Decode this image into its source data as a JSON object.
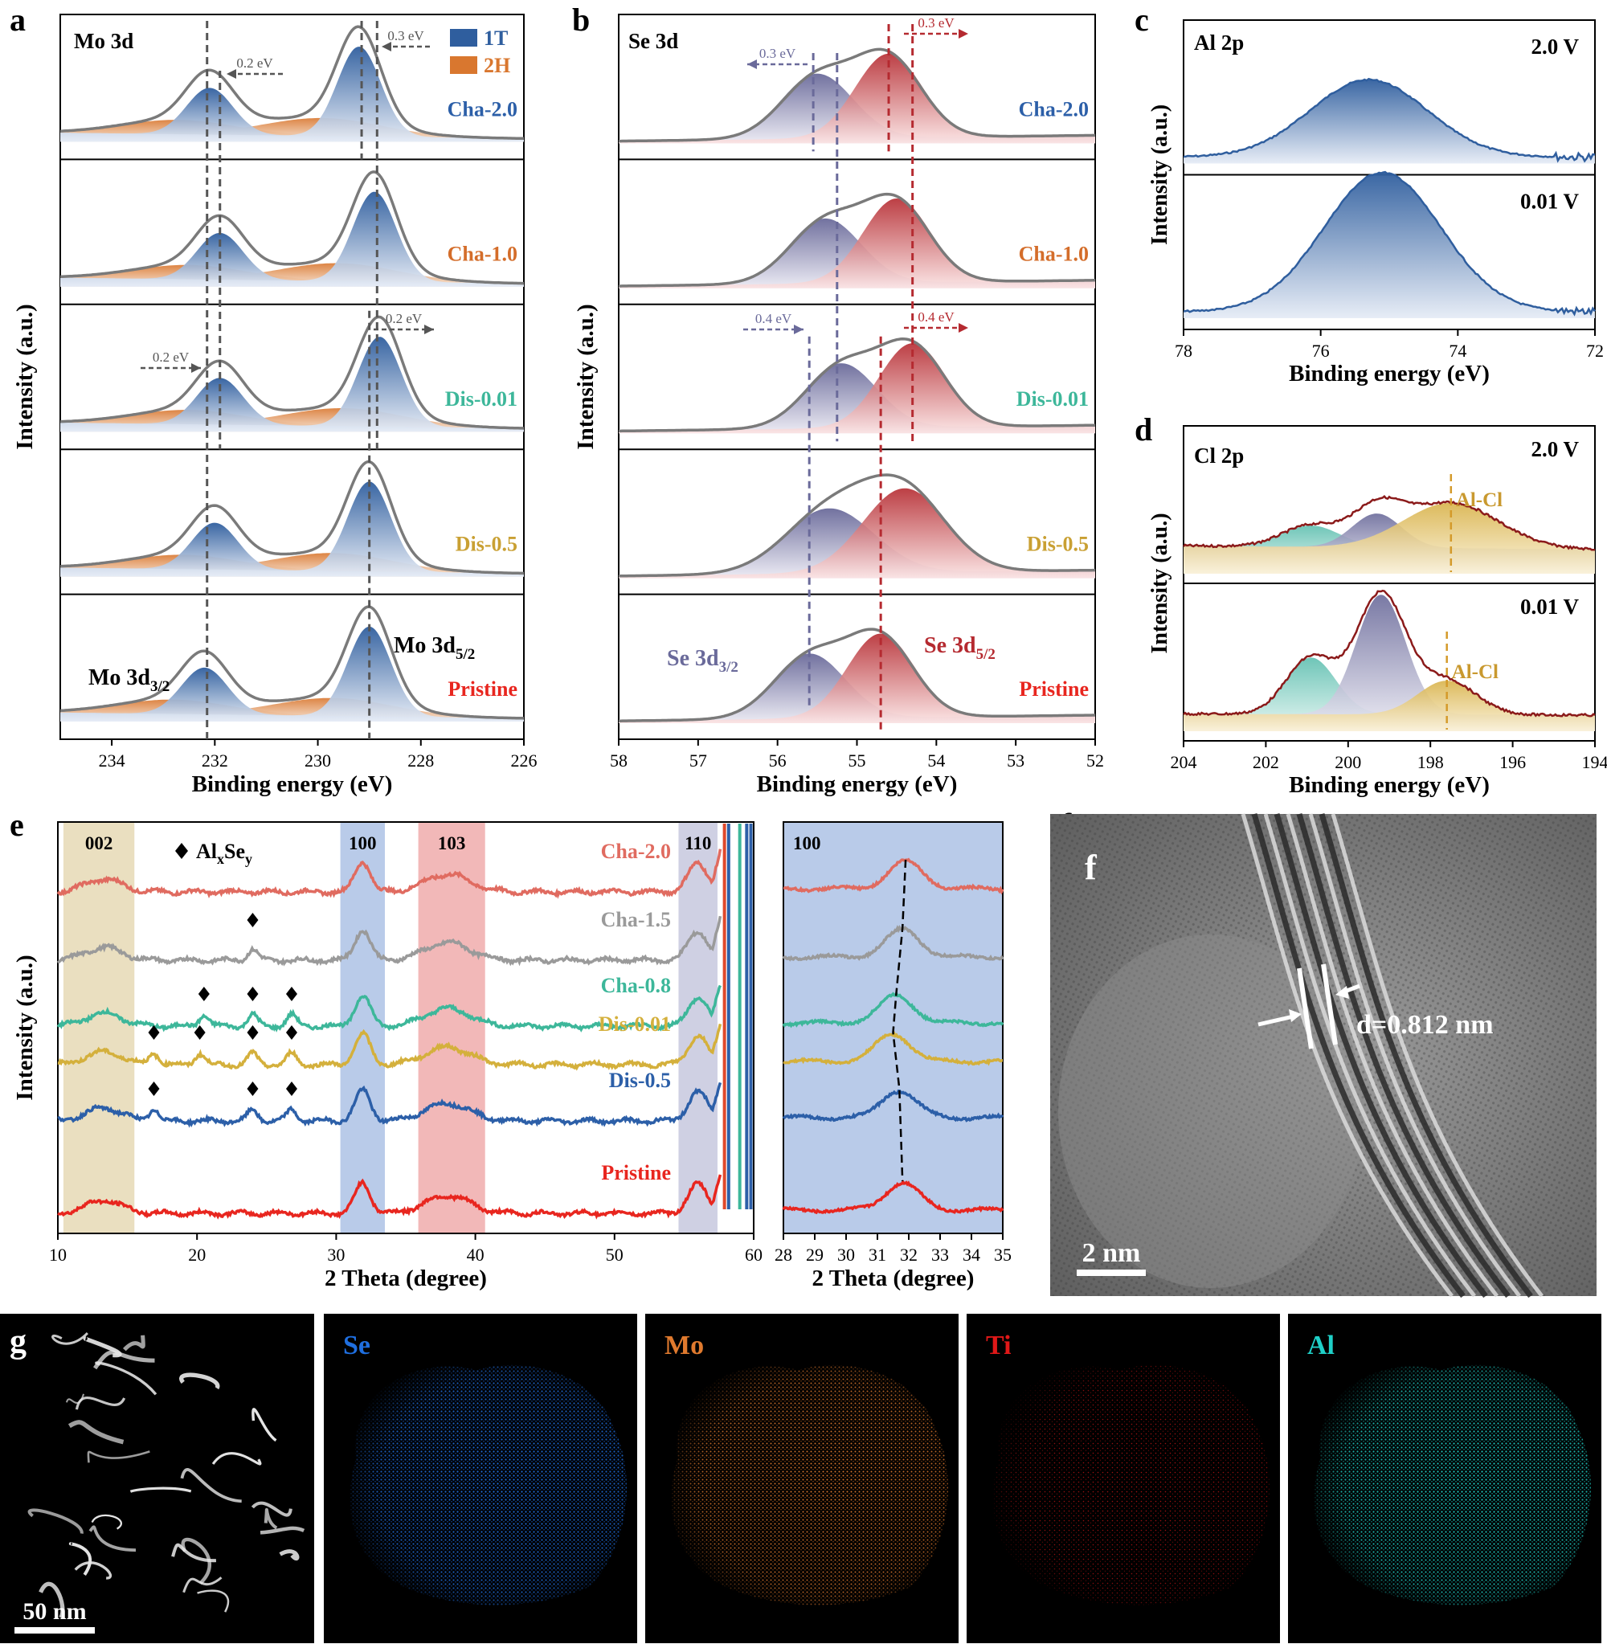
{
  "colors": {
    "c1T": "#2f5e9e",
    "c2H": "#d9772f",
    "se32": "#6a6a9a",
    "se52": "#b52a30",
    "al": "#2f5e9e",
    "alcl": "#d8b24a",
    "teal": "#5fbfb0",
    "cha20": "#e06b60",
    "cha15": "#9a9a9a",
    "cha08": "#3db79a",
    "dis001": "#d4b03c",
    "dis05": "#2c5fa8",
    "pristine": "#e8261f"
  },
  "panel_labels": [
    "a",
    "b",
    "c",
    "d",
    "e",
    "f",
    "g"
  ],
  "chart_data": [
    {
      "id": "a",
      "type": "line",
      "title": "Mo 3d",
      "xlabel": "Binding energy (eV)",
      "ylabel": "Intensity (a.u.)",
      "xlim": [
        235,
        226
      ],
      "xticks": [
        "234",
        "232",
        "230",
        "228",
        "226"
      ],
      "legend": [
        "1T",
        "2H"
      ],
      "peak_labels": {
        "left": "Mo 3d3/2",
        "right": "Mo 3d5/2"
      },
      "rows": [
        {
          "label": "Cha-2.0",
          "peaks_1T": [
            232.1,
            229.2
          ],
          "annot": [
            "0.2 eV",
            "0.3 eV"
          ]
        },
        {
          "label": "Cha-1.0",
          "peaks_1T": [
            231.9,
            228.9
          ],
          "annot": []
        },
        {
          "label": "Dis-0.01",
          "peaks_1T": [
            231.9,
            228.8
          ],
          "annot": [
            "0.2 eV",
            "0.2 eV"
          ]
        },
        {
          "label": "Dis-0.5",
          "peaks_1T": [
            232.0,
            229.0
          ],
          "annot": []
        },
        {
          "label": "Pristine",
          "peaks_1T": [
            232.2,
            229.0
          ],
          "annot": []
        }
      ]
    },
    {
      "id": "b",
      "type": "line",
      "title": "Se 3d",
      "xlabel": "Binding energy (eV)",
      "ylabel": "Intensity (a.u.)",
      "xlim": [
        58,
        52
      ],
      "xticks": [
        "58",
        "57",
        "56",
        "55",
        "54",
        "53",
        "52"
      ],
      "peak_labels": {
        "left": "Se 3d3/2",
        "right": "Se 3d5/2"
      },
      "rows": [
        {
          "label": "Cha-2.0",
          "peaks": [
            55.5,
            54.6
          ],
          "annot": [
            "0.3 eV",
            "0.3 eV"
          ]
        },
        {
          "label": "Cha-1.0",
          "peaks": [
            55.4,
            54.5
          ],
          "annot": []
        },
        {
          "label": "Dis-0.01",
          "peaks": [
            55.2,
            54.3
          ],
          "annot": [
            "0.4 eV",
            "0.4 eV"
          ]
        },
        {
          "label": "Dis-0.5",
          "peaks": [
            55.35,
            54.4
          ],
          "annot": []
        },
        {
          "label": "Pristine",
          "peaks": [
            55.6,
            54.7
          ],
          "annot": []
        }
      ]
    },
    {
      "id": "c",
      "type": "line",
      "title": "Al 2p",
      "xlabel": "Binding energy (eV)",
      "ylabel": "Intensity (a.u.)",
      "xlim": [
        78,
        72
      ],
      "xticks": [
        "78",
        "76",
        "74",
        "72"
      ],
      "rows": [
        {
          "label": "2.0 V",
          "peak": 75.3
        },
        {
          "label": "0.01 V",
          "peak": 75.1
        }
      ]
    },
    {
      "id": "d",
      "type": "line",
      "title": "Cl 2p",
      "xlabel": "Binding energy (eV)",
      "ylabel": "Intensity (a.u.)",
      "xlim": [
        204,
        194
      ],
      "xticks": [
        "204",
        "202",
        "200",
        "198",
        "196",
        "194"
      ],
      "rows": [
        {
          "label": "2.0 V",
          "annot": "Al-Cl",
          "peaks": [
            200.9,
            199.3,
            197.5
          ]
        },
        {
          "label": "0.01 V",
          "annot": "Al-Cl",
          "peaks": [
            200.9,
            199.2,
            197.6
          ]
        }
      ]
    },
    {
      "id": "e",
      "type": "line",
      "xlabel": "2 Theta (degree)",
      "ylabel": "Intensity (a.u.)",
      "xlim": [
        10,
        60
      ],
      "xticks": [
        "10",
        "20",
        "30",
        "40",
        "50",
        "60"
      ],
      "bands": [
        "002",
        "100",
        "103",
        "110"
      ],
      "legend_marker": "AlxSey",
      "series": [
        "Cha-2.0",
        "Cha-1.5",
        "Cha-0.8",
        "Dis-0.01",
        "Dis-0.5",
        "Pristine"
      ]
    },
    {
      "id": "e-inset",
      "type": "line",
      "xlabel": "2 Theta (degree)",
      "xlim": [
        28,
        35
      ],
      "xticks": [
        "28",
        "29",
        "30",
        "31",
        "32",
        "33",
        "34"
      ],
      "band": "100",
      "peak_positions": [
        31.9,
        31.8,
        31.6,
        31.5,
        31.7,
        31.8
      ]
    }
  ],
  "panel_f": {
    "annotation": "d=0.812 nm",
    "scalebar": "2 nm"
  },
  "panel_g": {
    "scalebar": "50 nm",
    "maps": [
      "Se",
      "Mo",
      "Ti",
      "Al"
    ]
  }
}
